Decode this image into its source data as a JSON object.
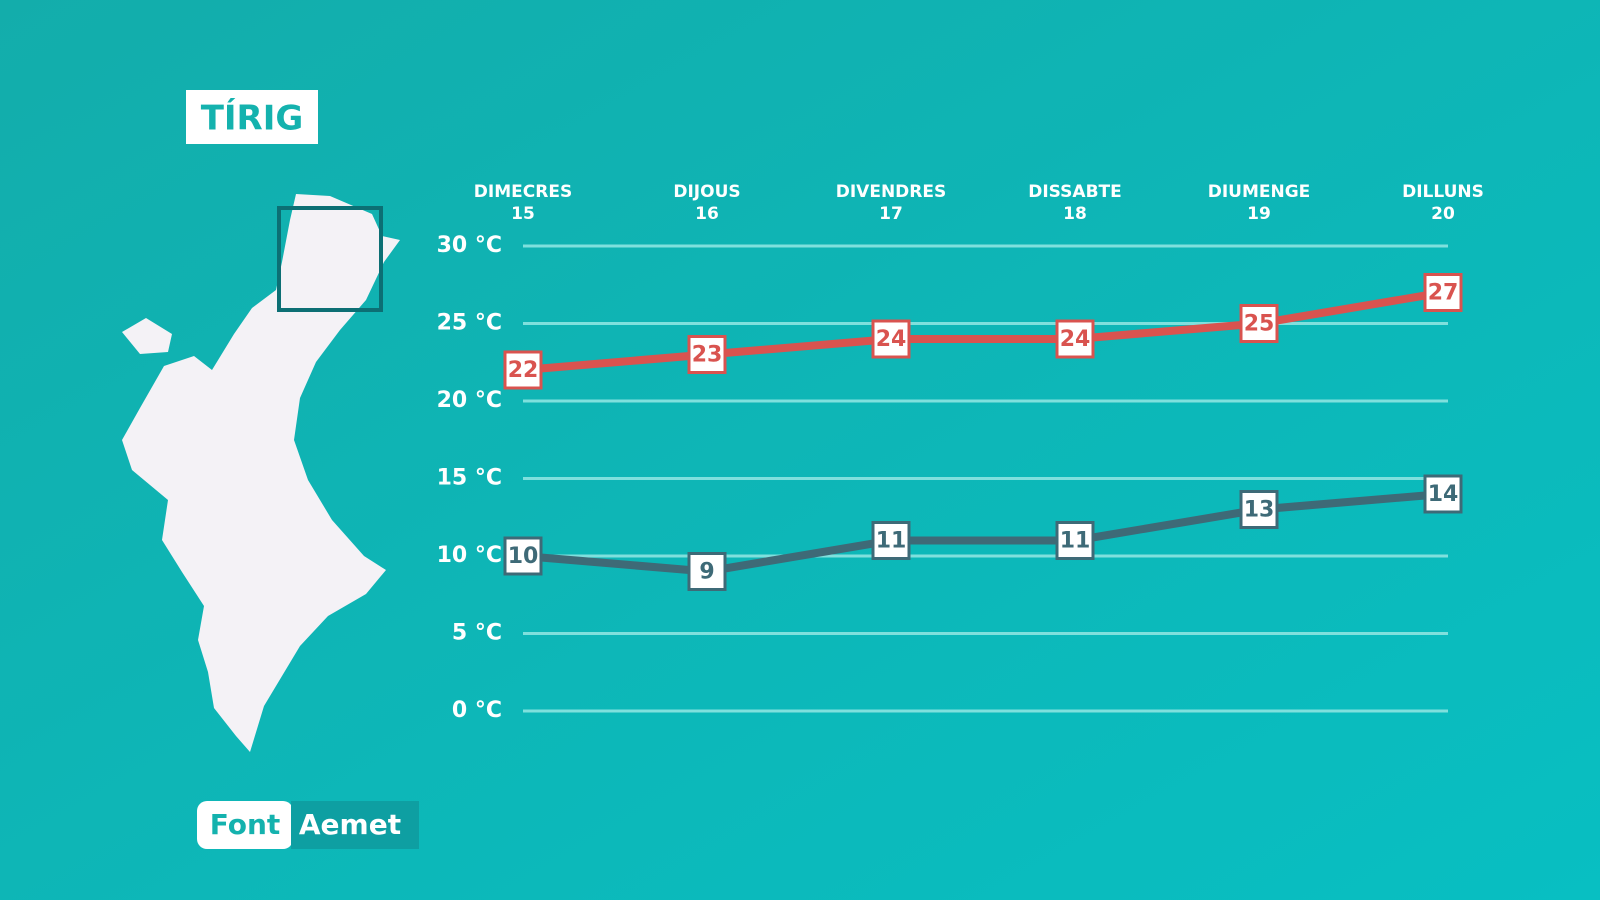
{
  "title": "TÍRIG",
  "source": {
    "label": "Font",
    "name": "Aemet"
  },
  "chart_data": {
    "type": "line",
    "categories": [
      [
        "DIMECRES",
        "15"
      ],
      [
        "DIJOUS",
        "16"
      ],
      [
        "DIVENDRES",
        "17"
      ],
      [
        "DISSABTE",
        "18"
      ],
      [
        "DIUMENGE",
        "19"
      ],
      [
        "DILLUNS",
        "20"
      ]
    ],
    "series": [
      {
        "color": "#d9534f",
        "values": [
          22,
          23,
          24,
          24,
          25,
          27
        ]
      },
      {
        "color": "#3e6a77",
        "values": [
          10,
          9,
          11,
          11,
          13,
          14
        ]
      }
    ],
    "ylim": [
      0,
      30
    ],
    "yticks": [
      {
        "value": 0,
        "label": "0 °C"
      },
      {
        "value": 5,
        "label": "5 °C"
      },
      {
        "value": 10,
        "label": "10 °C"
      },
      {
        "value": 15,
        "label": "15 °C"
      },
      {
        "value": 20,
        "label": "20 °C"
      },
      {
        "value": 25,
        "label": "25 °C"
      },
      {
        "value": 30,
        "label": "30 °C"
      }
    ],
    "grid": true
  }
}
